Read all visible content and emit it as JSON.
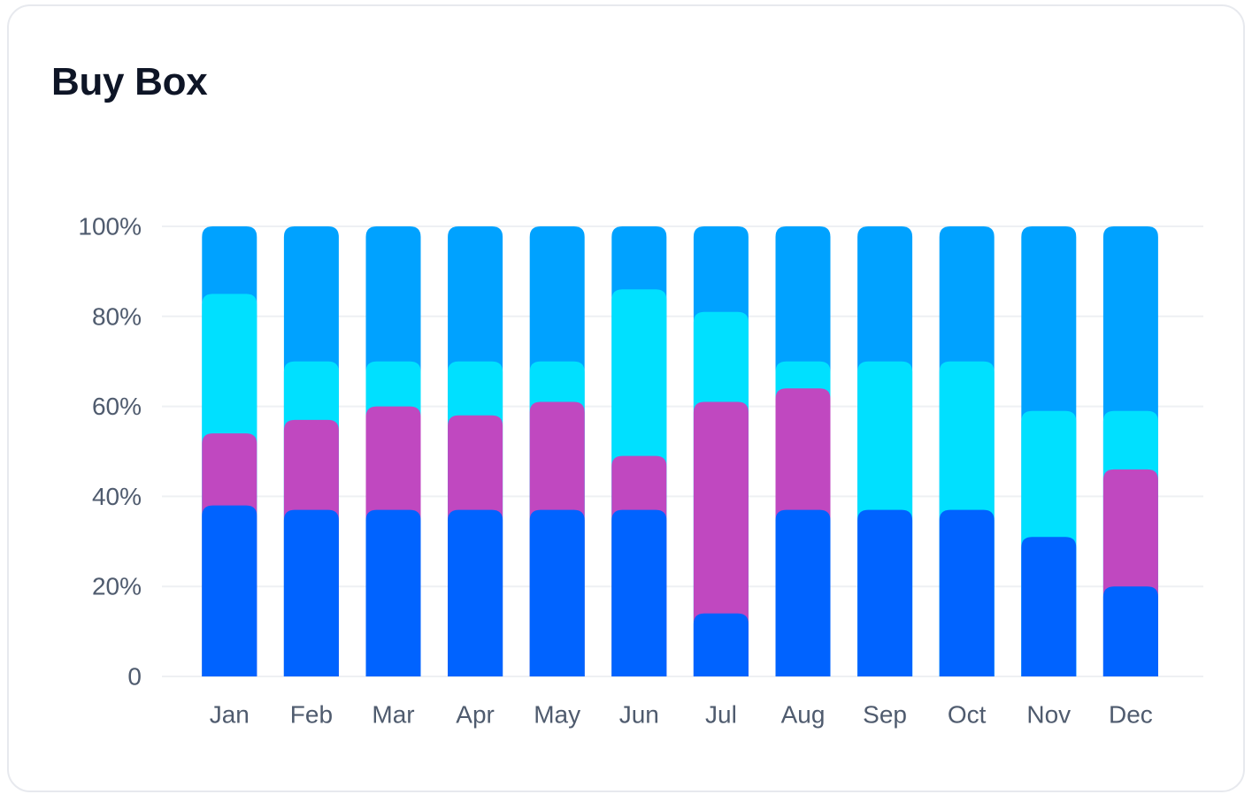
{
  "card": {
    "title": "Buy Box"
  },
  "colors": {
    "series": [
      "#0063ff",
      "#c048c0",
      "#00e0ff",
      "#00a2ff"
    ],
    "grid": "#eef0f3",
    "tick_text": "#4f5b6e",
    "title_text": "#0e1526",
    "card_border": "#e7e9ee"
  },
  "chart_data": {
    "type": "bar",
    "stacked": true,
    "title": "Buy Box",
    "xlabel": "",
    "ylabel": "",
    "ylim": [
      0,
      100
    ],
    "yticks": [
      0,
      20,
      40,
      60,
      80,
      100
    ],
    "ytick_labels": [
      "0",
      "20%",
      "40%",
      "60%",
      "80%",
      "100%"
    ],
    "grid": true,
    "legend": "none",
    "categories": [
      "Jan",
      "Feb",
      "Mar",
      "Apr",
      "May",
      "Jun",
      "Jul",
      "Aug",
      "Sep",
      "Oct",
      "Nov",
      "Dec"
    ],
    "series": [
      {
        "values": [
          38,
          37,
          37,
          37,
          37,
          37,
          14,
          37,
          37,
          37,
          31,
          20
        ]
      },
      {
        "values": [
          16,
          20,
          23,
          21,
          24,
          12,
          47,
          27,
          0,
          0,
          0,
          26
        ]
      },
      {
        "values": [
          31,
          13,
          10,
          12,
          9,
          37,
          20,
          6,
          33,
          33,
          28,
          13
        ]
      },
      {
        "values": [
          15,
          30,
          30,
          30,
          30,
          14,
          19,
          30,
          30,
          30,
          41,
          41
        ]
      }
    ]
  }
}
